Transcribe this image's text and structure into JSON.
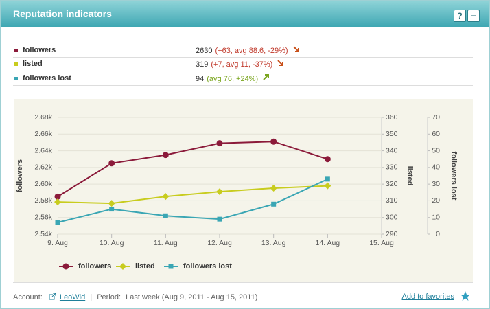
{
  "header": {
    "title": "Reputation indicators",
    "help": "?",
    "minimize": "−"
  },
  "indicators": [
    {
      "name": "followers",
      "value": 2630,
      "change": "(+63, avg 88.6, -29%)"
    },
    {
      "name": "listed",
      "value": 319,
      "change": "(+7, avg 11, -37%)"
    },
    {
      "name": "followers lost",
      "value": 94,
      "change": "(avg 76, +24%)"
    }
  ],
  "chart_data": {
    "type": "line",
    "categories": [
      "9. Aug",
      "10. Aug",
      "11. Aug",
      "12. Aug",
      "13. Aug",
      "14. Aug",
      "15. Aug"
    ],
    "ylabel": "followers",
    "y2label": "listed",
    "y3label": "followers lost",
    "ylim": [
      2540,
      2680
    ],
    "yticks": [
      {
        "value": 2540,
        "label": "2.54k"
      },
      {
        "value": 2560,
        "label": "2.56k"
      },
      {
        "value": 2580,
        "label": "2.58k"
      },
      {
        "value": 2600,
        "label": "2.60k"
      },
      {
        "value": 2620,
        "label": "2.62k"
      },
      {
        "value": 2640,
        "label": "2.64k"
      },
      {
        "value": 2660,
        "label": "2.66k"
      },
      {
        "value": 2680,
        "label": "2.68k"
      }
    ],
    "y2lim": [
      290,
      360
    ],
    "y2ticks": [
      290,
      300,
      310,
      320,
      330,
      340,
      350,
      360
    ],
    "y3lim": [
      0,
      70
    ],
    "y3ticks": [
      0,
      10,
      20,
      30,
      40,
      50,
      60,
      70
    ],
    "grid": true,
    "series": [
      {
        "name": "followers",
        "color": "#8b1a3a",
        "marker": "circle",
        "axis": "y",
        "values": [
          2585,
          2625,
          2635,
          2649,
          2651,
          2630,
          null
        ]
      },
      {
        "name": "listed",
        "color": "#c8cc1e",
        "marker": "diamond",
        "axis": "y2",
        "values": [
          309.3,
          308.5,
          312.6,
          315.5,
          317.6,
          319,
          null
        ]
      },
      {
        "name": "followers lost",
        "color": "#3aa6b4",
        "marker": "square",
        "axis": "y3",
        "values": [
          7,
          15,
          11,
          9,
          18,
          33,
          null
        ]
      }
    ]
  },
  "footer": {
    "account_label": "Account:",
    "account": "LeoWid",
    "period_label": "Period:",
    "period": "Last week (Aug 9, 2011 - Aug 15, 2011)",
    "favorites": "Add to favorites"
  }
}
